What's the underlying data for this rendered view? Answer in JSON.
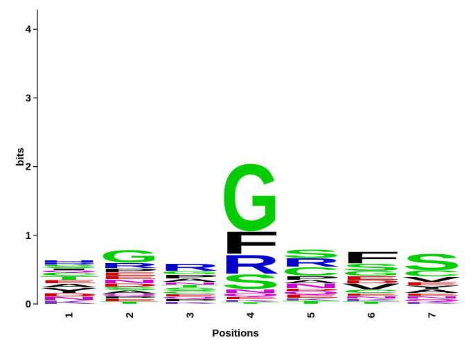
{
  "chart_data": {
    "type": "sequence-logo",
    "xlabel": "Positions",
    "ylabel": "bits",
    "ylim": [
      0,
      4.3
    ],
    "yticks": [
      0,
      1,
      2,
      3,
      4
    ],
    "positions": [
      "1",
      "2",
      "3",
      "4",
      "5",
      "6",
      "7"
    ],
    "colors": {
      "green": "#00cc00",
      "blue": "#0000cc",
      "black": "#000000",
      "red": "#cc0000",
      "magenta": "#cc00cc",
      "purple": "#7b3fb3"
    },
    "stacks": [
      [
        {
          "letter": "K",
          "color": "purple",
          "height": 0.06
        },
        {
          "letter": "N",
          "color": "magenta",
          "height": 0.05
        },
        {
          "letter": "D",
          "color": "red",
          "height": 0.05
        },
        {
          "letter": "Y",
          "color": "black",
          "height": 0.08
        },
        {
          "letter": "A",
          "color": "black",
          "height": 0.06
        },
        {
          "letter": "E",
          "color": "red",
          "height": 0.05
        },
        {
          "letter": "T",
          "color": "green",
          "height": 0.06
        },
        {
          "letter": "C",
          "color": "green",
          "height": 0.05
        },
        {
          "letter": "Q",
          "color": "magenta",
          "height": 0.03
        },
        {
          "letter": "I",
          "color": "black",
          "height": 0.03
        },
        {
          "letter": "S",
          "color": "green",
          "height": 0.05
        },
        {
          "letter": "R",
          "color": "blue",
          "height": 0.03
        },
        {
          "letter": "H",
          "color": "blue",
          "height": 0.04
        }
      ],
      [
        {
          "letter": "T",
          "color": "green",
          "height": 0.04
        },
        {
          "letter": "E",
          "color": "red",
          "height": 0.04
        },
        {
          "letter": "P",
          "color": "black",
          "height": 0.04
        },
        {
          "letter": "Q",
          "color": "magenta",
          "height": 0.03
        },
        {
          "letter": "A",
          "color": "black",
          "height": 0.05
        },
        {
          "letter": "S",
          "color": "green",
          "height": 0.05
        },
        {
          "letter": "D",
          "color": "red",
          "height": 0.05
        },
        {
          "letter": "N",
          "color": "magenta",
          "height": 0.06
        },
        {
          "letter": "E",
          "color": "red",
          "height": 0.05
        },
        {
          "letter": "E",
          "color": "red",
          "height": 0.05
        },
        {
          "letter": "P",
          "color": "black",
          "height": 0.06
        },
        {
          "letter": "R",
          "color": "blue",
          "height": 0.08
        },
        {
          "letter": "G",
          "color": "green",
          "height": 0.19
        }
      ],
      [
        {
          "letter": "K",
          "color": "purple",
          "height": 0.04
        },
        {
          "letter": "P",
          "color": "black",
          "height": 0.04
        },
        {
          "letter": "Q",
          "color": "magenta",
          "height": 0.03
        },
        {
          "letter": "E",
          "color": "red",
          "height": 0.04
        },
        {
          "letter": "C",
          "color": "green",
          "height": 0.04
        },
        {
          "letter": "S",
          "color": "green",
          "height": 0.05
        },
        {
          "letter": "T",
          "color": "green",
          "height": 0.04
        },
        {
          "letter": "N",
          "color": "magenta",
          "height": 0.04
        },
        {
          "letter": "A",
          "color": "black",
          "height": 0.05
        },
        {
          "letter": "P",
          "color": "black",
          "height": 0.06
        },
        {
          "letter": "G",
          "color": "green",
          "height": 0.05
        },
        {
          "letter": "R",
          "color": "blue",
          "height": 0.11
        }
      ],
      [
        {
          "letter": "T",
          "color": "green",
          "height": 0.03
        },
        {
          "letter": "K",
          "color": "purple",
          "height": 0.04
        },
        {
          "letter": "E",
          "color": "red",
          "height": 0.04
        },
        {
          "letter": "Q",
          "color": "magenta",
          "height": 0.05
        },
        {
          "letter": "N",
          "color": "magenta",
          "height": 0.06
        },
        {
          "letter": "S",
          "color": "green",
          "height": 0.22
        },
        {
          "letter": "R",
          "color": "blue",
          "height": 0.29
        },
        {
          "letter": "F",
          "color": "black",
          "height": 0.34
        },
        {
          "letter": "G",
          "color": "green",
          "height": 1.01
        }
      ],
      [
        {
          "letter": "T",
          "color": "green",
          "height": 0.05
        },
        {
          "letter": "K",
          "color": "purple",
          "height": 0.04
        },
        {
          "letter": "E",
          "color": "red",
          "height": 0.05
        },
        {
          "letter": "Q",
          "color": "magenta",
          "height": 0.05
        },
        {
          "letter": "D",
          "color": "red",
          "height": 0.04
        },
        {
          "letter": "N",
          "color": "magenta",
          "height": 0.07
        },
        {
          "letter": "A",
          "color": "black",
          "height": 0.05
        },
        {
          "letter": "P",
          "color": "black",
          "height": 0.06
        },
        {
          "letter": "C",
          "color": "green",
          "height": 0.13
        },
        {
          "letter": "R",
          "color": "blue",
          "height": 0.13
        },
        {
          "letter": "S",
          "color": "green",
          "height": 0.13
        }
      ],
      [
        {
          "letter": "T",
          "color": "green",
          "height": 0.04
        },
        {
          "letter": "K",
          "color": "purple",
          "height": 0.04
        },
        {
          "letter": "N",
          "color": "magenta",
          "height": 0.04
        },
        {
          "letter": "E",
          "color": "red",
          "height": 0.04
        },
        {
          "letter": "C",
          "color": "green",
          "height": 0.05
        },
        {
          "letter": "V",
          "color": "black",
          "height": 0.09
        },
        {
          "letter": "D",
          "color": "red",
          "height": 0.05
        },
        {
          "letter": "E",
          "color": "red",
          "height": 0.06
        },
        {
          "letter": "G",
          "color": "green",
          "height": 0.07
        },
        {
          "letter": "S",
          "color": "green",
          "height": 0.11
        },
        {
          "letter": "F",
          "color": "black",
          "height": 0.18
        }
      ],
      [
        {
          "letter": "K",
          "color": "purple",
          "height": 0.04
        },
        {
          "letter": "Q",
          "color": "magenta",
          "height": 0.04
        },
        {
          "letter": "N",
          "color": "magenta",
          "height": 0.04
        },
        {
          "letter": "E",
          "color": "red",
          "height": 0.04
        },
        {
          "letter": "A",
          "color": "black",
          "height": 0.06
        },
        {
          "letter": "Y",
          "color": "black",
          "height": 0.05
        },
        {
          "letter": "E",
          "color": "red",
          "height": 0.05
        },
        {
          "letter": "V",
          "color": "black",
          "height": 0.08
        },
        {
          "letter": "C",
          "color": "green",
          "height": 0.09
        },
        {
          "letter": "S",
          "color": "green",
          "height": 0.25
        }
      ]
    ]
  }
}
